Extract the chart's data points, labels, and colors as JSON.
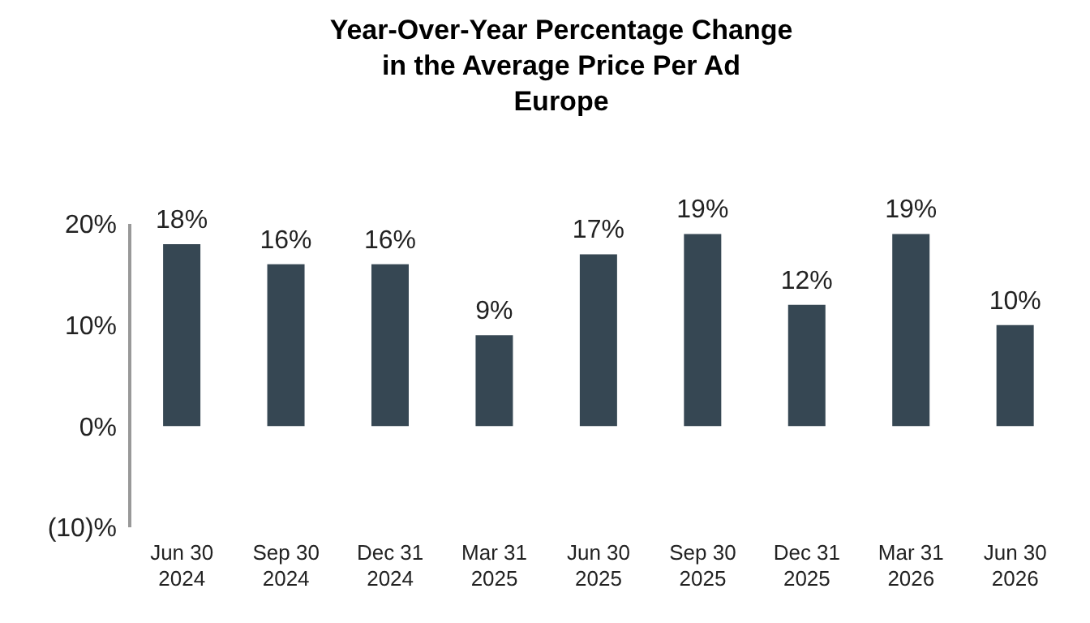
{
  "chart_data": {
    "type": "bar",
    "title": "Year-Over-Year Percentage Change in the Average Price Per Ad",
    "subtitle": "Europe",
    "categories": [
      "Jun 30 2024",
      "Sep 30 2024",
      "Dec 31 2024",
      "Mar 31 2025",
      "Jun 30 2025",
      "Sep 30 2025",
      "Dec 31 2025",
      "Mar 31 2026",
      "Jun 30 2026"
    ],
    "values": [
      18,
      16,
      16,
      9,
      17,
      19,
      12,
      19,
      10
    ],
    "value_labels": [
      "18%",
      "16%",
      "16%",
      "9%",
      "17%",
      "19%",
      "12%",
      "19%",
      "10%"
    ],
    "color": "#364753",
    "ylim": [
      -10,
      20
    ],
    "yticks": [
      {
        "value": -10,
        "label": "(10)%"
      },
      {
        "value": 0,
        "label": "0%"
      },
      {
        "value": 10,
        "label": "10%"
      },
      {
        "value": 20,
        "label": "20%"
      }
    ],
    "grid": false,
    "legend": false
  }
}
